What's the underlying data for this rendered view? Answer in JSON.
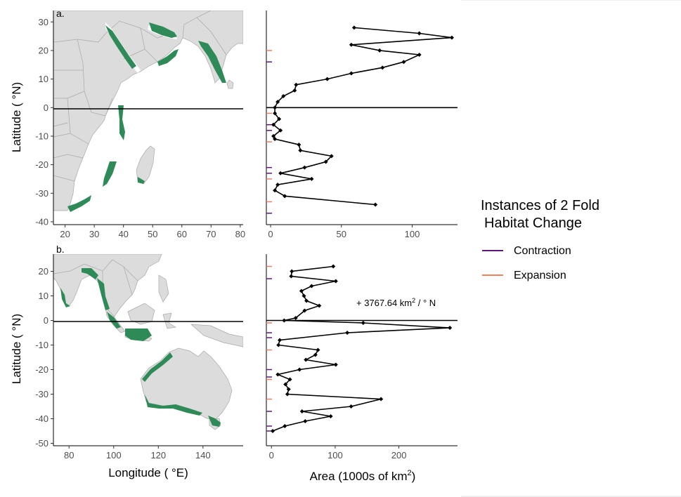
{
  "panel_labels": {
    "a": "a.",
    "b": "b."
  },
  "axis_labels": {
    "latitude": "Latitude ( °N)",
    "longitude": "Longitude ( °E)",
    "area_prefix": "Area (1000s of km",
    "area_sup": "2",
    "area_suffix": ")"
  },
  "legend": {
    "title_line1": "Instances of 2 Fold",
    "title_line2": "Habitat Change",
    "items": [
      {
        "label": "Contraction",
        "color": "#5b1a7a"
      },
      {
        "label": "Expansion",
        "color": "#f07f62"
      }
    ]
  },
  "annotation": {
    "prefix": "+ 3767.64 km",
    "sup": "2",
    "suffix": " / ° N"
  },
  "colors": {
    "habitat": "#2e8b57",
    "line": "#000000",
    "contraction": "#5b1a7a",
    "expansion": "#f07f62",
    "land": "#dcdcdc"
  },
  "maps": {
    "a": {
      "x_ticks": [
        20,
        30,
        40,
        50,
        60,
        70,
        80
      ],
      "y_ticks": [
        30,
        20,
        10,
        0,
        -10,
        -20,
        -30,
        -40
      ],
      "xlim": [
        16,
        81
      ],
      "ylim": [
        -41,
        34
      ]
    },
    "b": {
      "x_ticks": [
        80,
        100,
        120,
        140
      ],
      "y_ticks": [
        20,
        10,
        0,
        -10,
        -20,
        -30,
        -40,
        -50
      ],
      "xlim": [
        73,
        158
      ],
      "ylim": [
        -51,
        27
      ]
    }
  },
  "chart_data": [
    {
      "type": "line",
      "panel": "a",
      "xlabel": "",
      "ylabel": "",
      "xlim": [
        -3,
        132
      ],
      "ylim": [
        -41,
        34
      ],
      "x_ticks": [
        0,
        50,
        100
      ],
      "y_ticks": [
        30,
        20,
        10,
        0,
        -10,
        -20,
        -30,
        -40
      ],
      "series": [
        {
          "x": [
            59,
            105,
            128,
            57,
            77,
            105,
            94,
            79,
            57,
            40,
            18,
            17,
            9,
            5,
            3,
            3,
            6,
            2,
            7,
            2,
            3,
            20,
            21,
            43,
            39,
            24,
            7,
            29,
            5,
            3,
            10,
            74
          ],
          "y": [
            28,
            26,
            24.5,
            22,
            20,
            18.5,
            16,
            14,
            12,
            10,
            8,
            6,
            4,
            2,
            0,
            -2,
            -4,
            -6,
            -8,
            -10,
            -11,
            -13,
            -15,
            -17,
            -19,
            -21,
            -23,
            -25,
            -27,
            -29,
            -31,
            -34
          ]
        }
      ],
      "contraction_lats": [
        16,
        -6,
        -8,
        -21,
        -23,
        -37
      ],
      "expansion_lats": [
        20,
        -2,
        -12,
        -25,
        -33
      ]
    },
    {
      "type": "line",
      "panel": "b",
      "xlabel": "",
      "ylabel": "",
      "xlim": [
        -8,
        292
      ],
      "ylim": [
        -51,
        27
      ],
      "x_ticks": [
        0,
        100,
        200
      ],
      "y_ticks": [
        20,
        10,
        0,
        -10,
        -20,
        -30,
        -40,
        -50
      ],
      "series": [
        {
          "x": [
            97,
            32,
            31,
            101,
            63,
            47,
            51,
            55,
            75,
            52,
            38,
            20,
            144,
            280,
            119,
            13,
            11,
            73,
            69,
            54,
            101,
            44,
            10,
            29,
            22,
            27,
            25,
            172,
            125,
            48,
            93,
            53,
            21,
            2
          ],
          "y": [
            22,
            20,
            18,
            16,
            14,
            12,
            10,
            8,
            6,
            4,
            1,
            0,
            -1,
            -3,
            -5,
            -8,
            -10,
            -12,
            -14,
            -16,
            -18,
            -20,
            -22,
            -24,
            -26,
            -28,
            -30,
            -32,
            -35,
            -37,
            -39,
            -41,
            -43,
            -45
          ]
        }
      ],
      "contraction_lats": [
        17,
        -5,
        -7,
        -20,
        -23,
        -37,
        -43,
        -45
      ],
      "expansion_lats": [
        22,
        -1,
        -12,
        -24,
        -32
      ]
    }
  ]
}
